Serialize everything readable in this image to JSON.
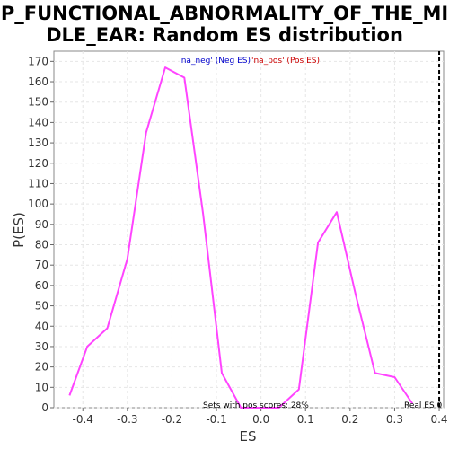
{
  "title_line1": "HP_FUNCTIONAL_ABNORMALITY_OF_THE_MID",
  "title_line2": "DLE_EAR: Random ES distribution",
  "legend_neg": "'na_neg' (Neg ES)",
  "legend_pos": "'na_pos' (Pos ES)",
  "pos_scores_note": "Sets with pos scores: 28%",
  "real_es_label": "Real ES 0",
  "colors": {
    "line": "#ff44ff",
    "neg": "#0000cc",
    "pos": "#cc0000",
    "grid": "#e6e6e6",
    "real_es": "#000000"
  },
  "chart_data": {
    "type": "line",
    "xlabel": "ES",
    "ylabel": "P(ES)",
    "xlim": [
      -0.465,
      0.41
    ],
    "ylim": [
      0,
      175
    ],
    "xticks": [
      -0.4,
      -0.3,
      -0.2,
      -0.1,
      0.0,
      0.1,
      0.2,
      0.3,
      0.4
    ],
    "xtick_labels": [
      "-0.4",
      "-0.3",
      "-0.2",
      "-0.1",
      "0.0",
      "0.1",
      "0.2",
      "0.3",
      "0.4"
    ],
    "yticks": [
      0,
      10,
      20,
      30,
      40,
      50,
      60,
      70,
      80,
      90,
      100,
      110,
      120,
      130,
      140,
      150,
      160,
      170
    ],
    "ytick_labels": [
      "0",
      "10",
      "20",
      "30",
      "40",
      "50",
      "60",
      "70",
      "80",
      "90",
      "100",
      "110",
      "120",
      "130",
      "140",
      "150",
      "160",
      "170"
    ],
    "grid": true,
    "real_es_x": 0.4,
    "series": [
      {
        "x": [
          -0.43,
          -0.39,
          -0.345,
          -0.3,
          -0.258,
          -0.215,
          -0.172,
          -0.13,
          -0.088,
          -0.045,
          0.0,
          0.04,
          0.085,
          0.128,
          0.17,
          0.213,
          0.256,
          0.3,
          0.34
        ],
        "y": [
          6,
          30,
          39,
          73,
          135,
          167,
          162,
          95,
          17,
          0,
          0,
          0,
          9,
          81,
          96,
          55,
          17,
          15,
          2
        ]
      }
    ]
  }
}
